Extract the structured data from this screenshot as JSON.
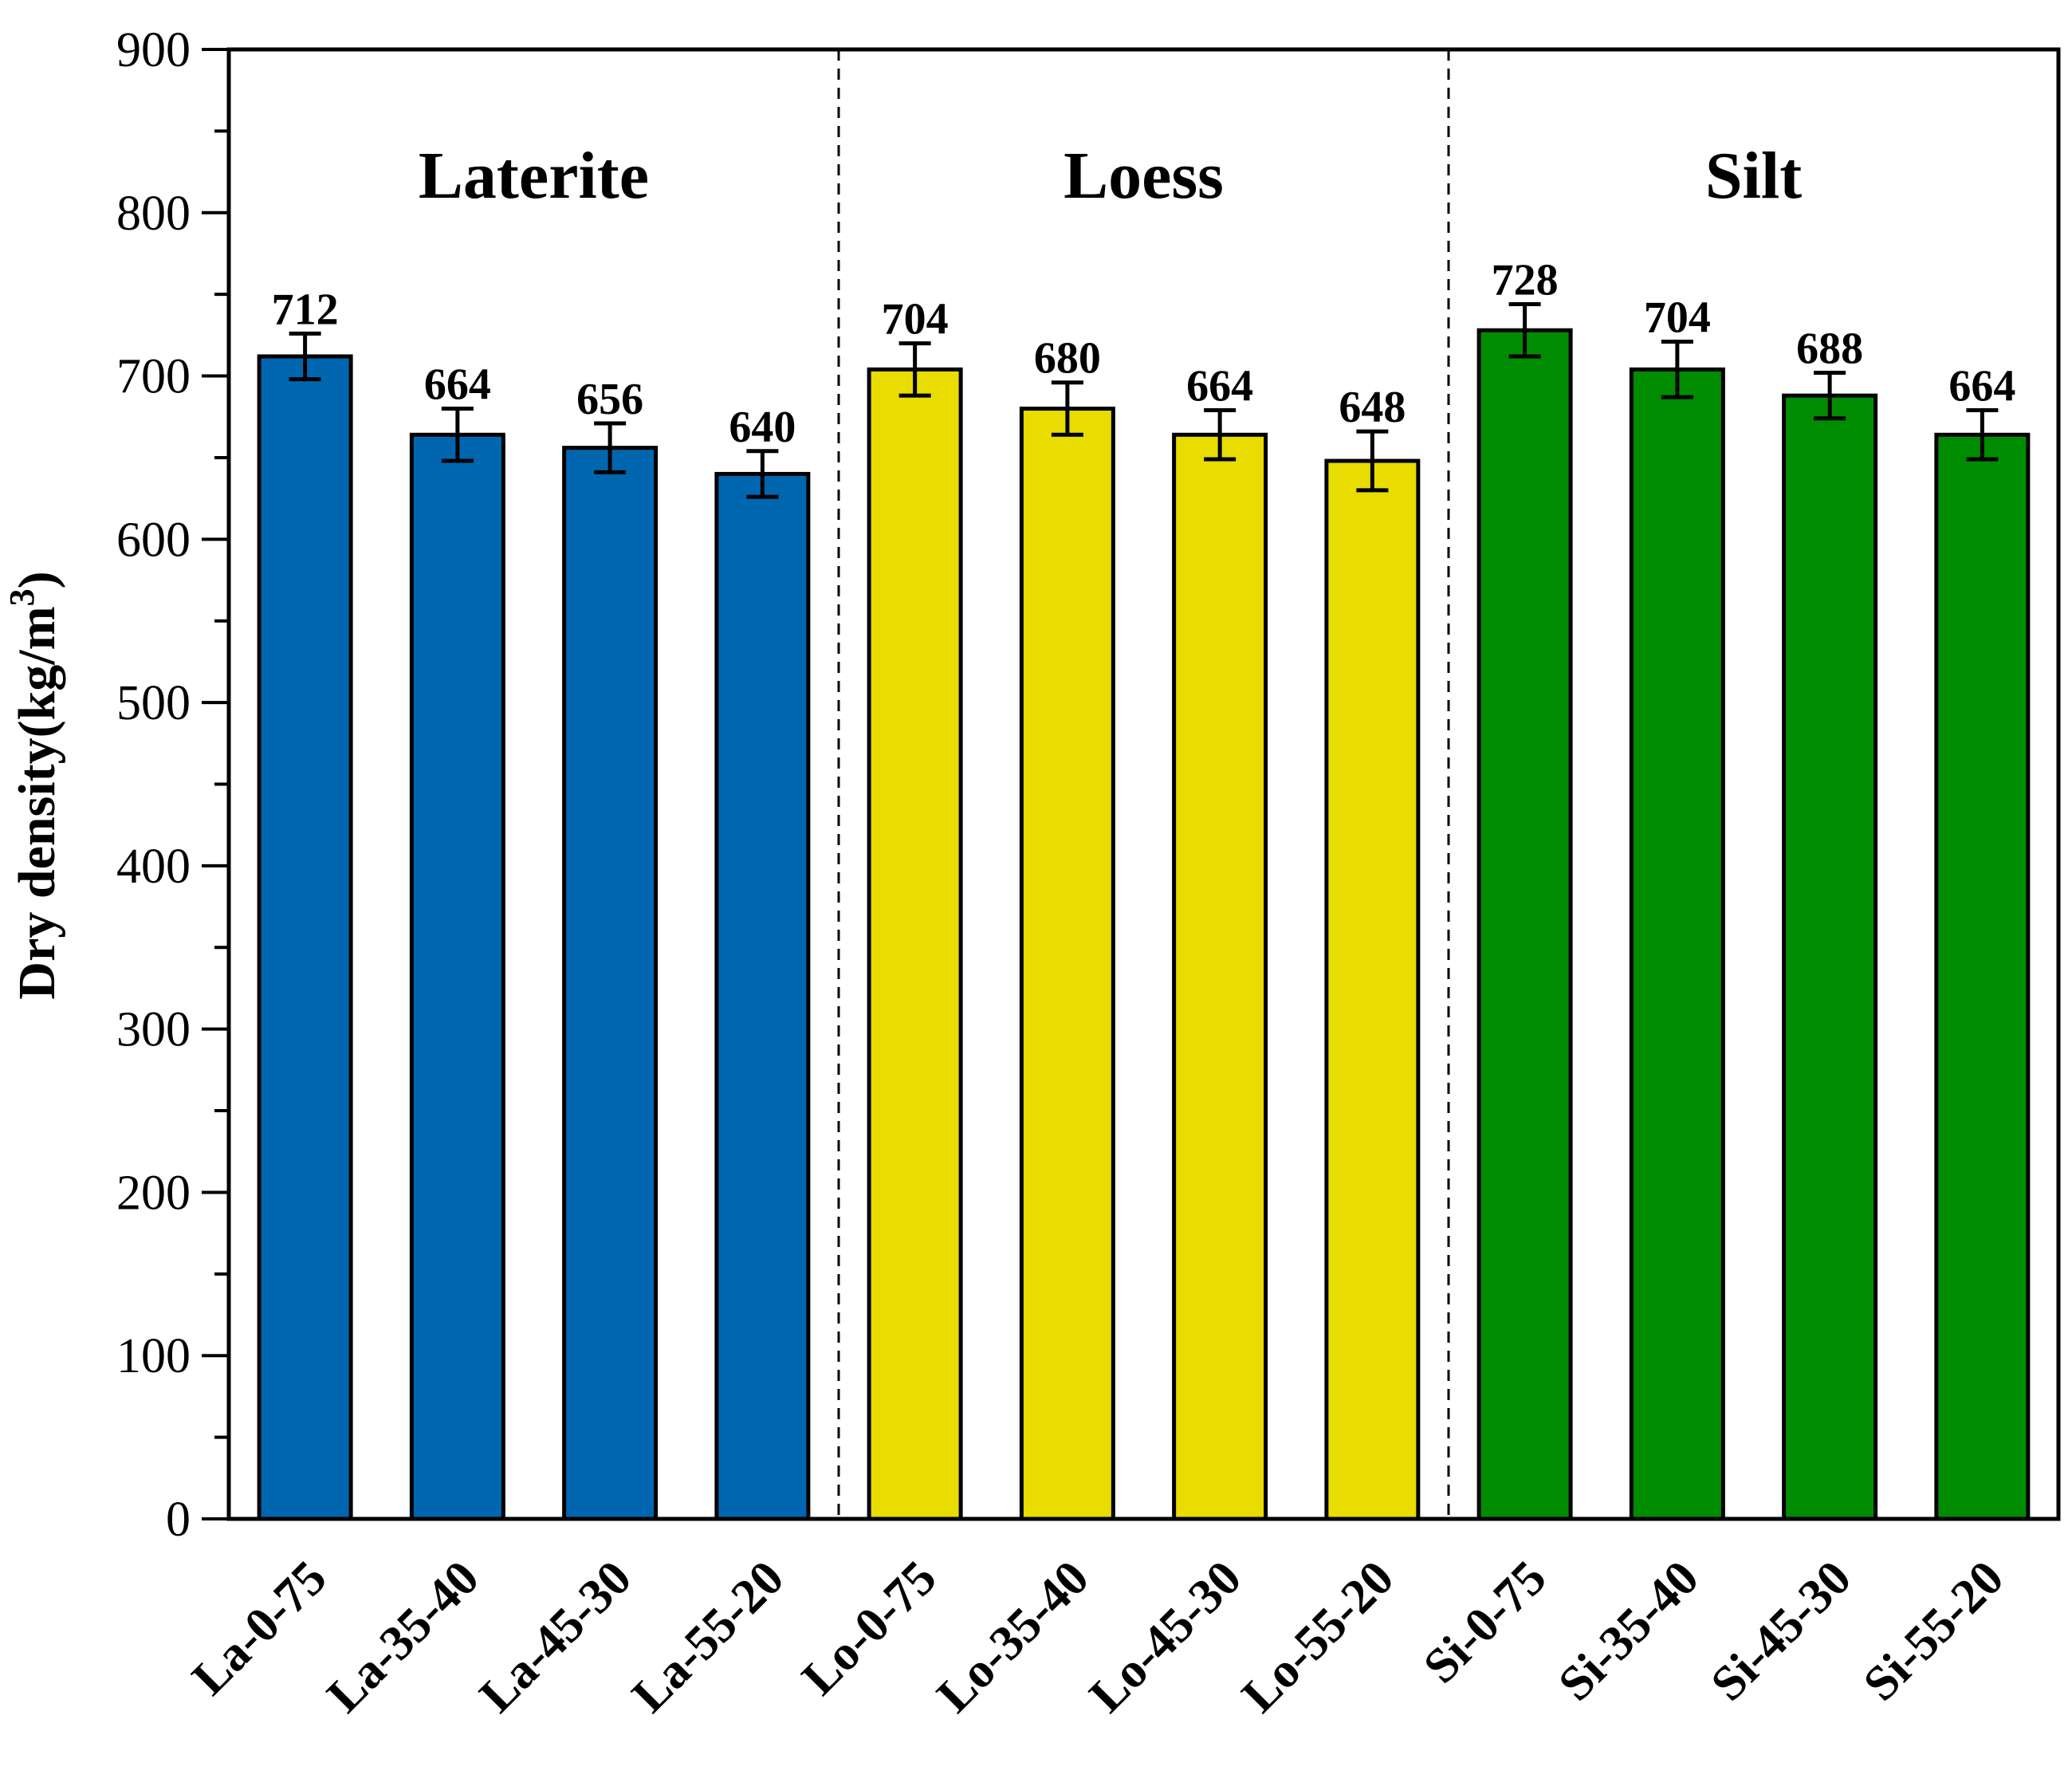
{
  "chart_data": {
    "type": "bar",
    "title": "",
    "xlabel": "",
    "ylabel": "Dry density(kg/m",
    "ylabel_superscript": "3",
    "ylabel_close": ")",
    "ylim": [
      0,
      900
    ],
    "yticks": [
      0,
      100,
      200,
      300,
      400,
      500,
      600,
      700,
      800,
      900
    ],
    "grid": false,
    "categories": [
      "La-0-75",
      "La-35-40",
      "La-45-30",
      "La-55-20",
      "Lo-0-75",
      "Lo-35-40",
      "Lo-45-30",
      "Lo-55-20",
      "Si-0-75",
      "Si-35-40",
      "Si-45-30",
      "Si-55-20"
    ],
    "values": [
      712,
      664,
      656,
      640,
      704,
      680,
      664,
      648,
      728,
      704,
      688,
      664
    ],
    "errors": [
      14,
      16,
      15,
      14,
      16,
      16,
      15,
      18,
      16,
      17,
      14,
      15
    ],
    "data_labels": [
      "712",
      "664",
      "656",
      "640",
      "704",
      "680",
      "664",
      "648",
      "728",
      "704",
      "688",
      "664"
    ],
    "groups": [
      {
        "name": "Laterite",
        "start": 0,
        "end": 3,
        "color": "#0066B0"
      },
      {
        "name": "Loess",
        "start": 4,
        "end": 7,
        "color": "#E8DC00"
      },
      {
        "name": "Silt",
        "start": 8,
        "end": 11,
        "color": "#008C00"
      }
    ]
  }
}
